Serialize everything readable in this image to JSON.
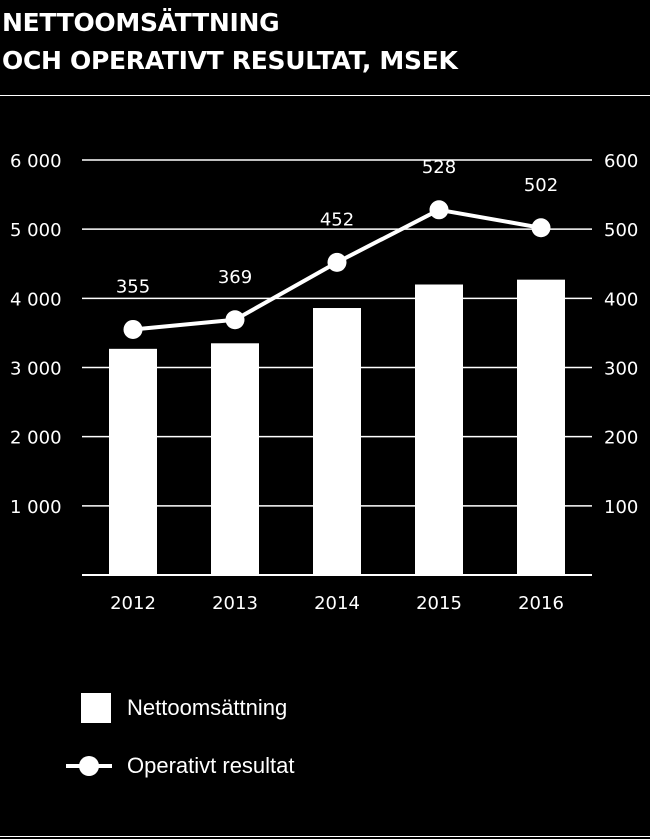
{
  "chart_data": {
    "type": "bar",
    "title_lines": [
      "NETTOOMSÄTTNING",
      "OCH OPERATIVT RESULTAT, MSEK"
    ],
    "categories": [
      "2012",
      "2013",
      "2014",
      "2015",
      "2016"
    ],
    "series": [
      {
        "name": "Nettoomsättning",
        "type": "bar",
        "axis": "left",
        "values": [
          3270,
          3350,
          3860,
          4200,
          4270
        ]
      },
      {
        "name": "Operativt resultat",
        "type": "line",
        "axis": "right",
        "values": [
          355,
          369,
          452,
          528,
          502
        ]
      }
    ],
    "left_axis": {
      "ylim": [
        0,
        6000
      ],
      "ticks": [
        1000,
        2000,
        3000,
        4000,
        5000,
        6000
      ],
      "tick_labels": [
        "1 000",
        "2 000",
        "3 000",
        "4 000",
        "5 000",
        "6 000"
      ]
    },
    "right_axis": {
      "ylim": [
        0,
        600
      ],
      "ticks": [
        100,
        200,
        300,
        400,
        500,
        600
      ],
      "tick_labels": [
        "100",
        "200",
        "300",
        "400",
        "500",
        "600"
      ]
    },
    "line_labels": [
      "355",
      "369",
      "452",
      "528",
      "502"
    ],
    "grid": true,
    "legend_position": "bottom-left",
    "colors": {
      "background": "#000000",
      "bars": "#ffffff",
      "line": "#ffffff",
      "grid": "#ffffff",
      "text": "#ffffff"
    }
  }
}
